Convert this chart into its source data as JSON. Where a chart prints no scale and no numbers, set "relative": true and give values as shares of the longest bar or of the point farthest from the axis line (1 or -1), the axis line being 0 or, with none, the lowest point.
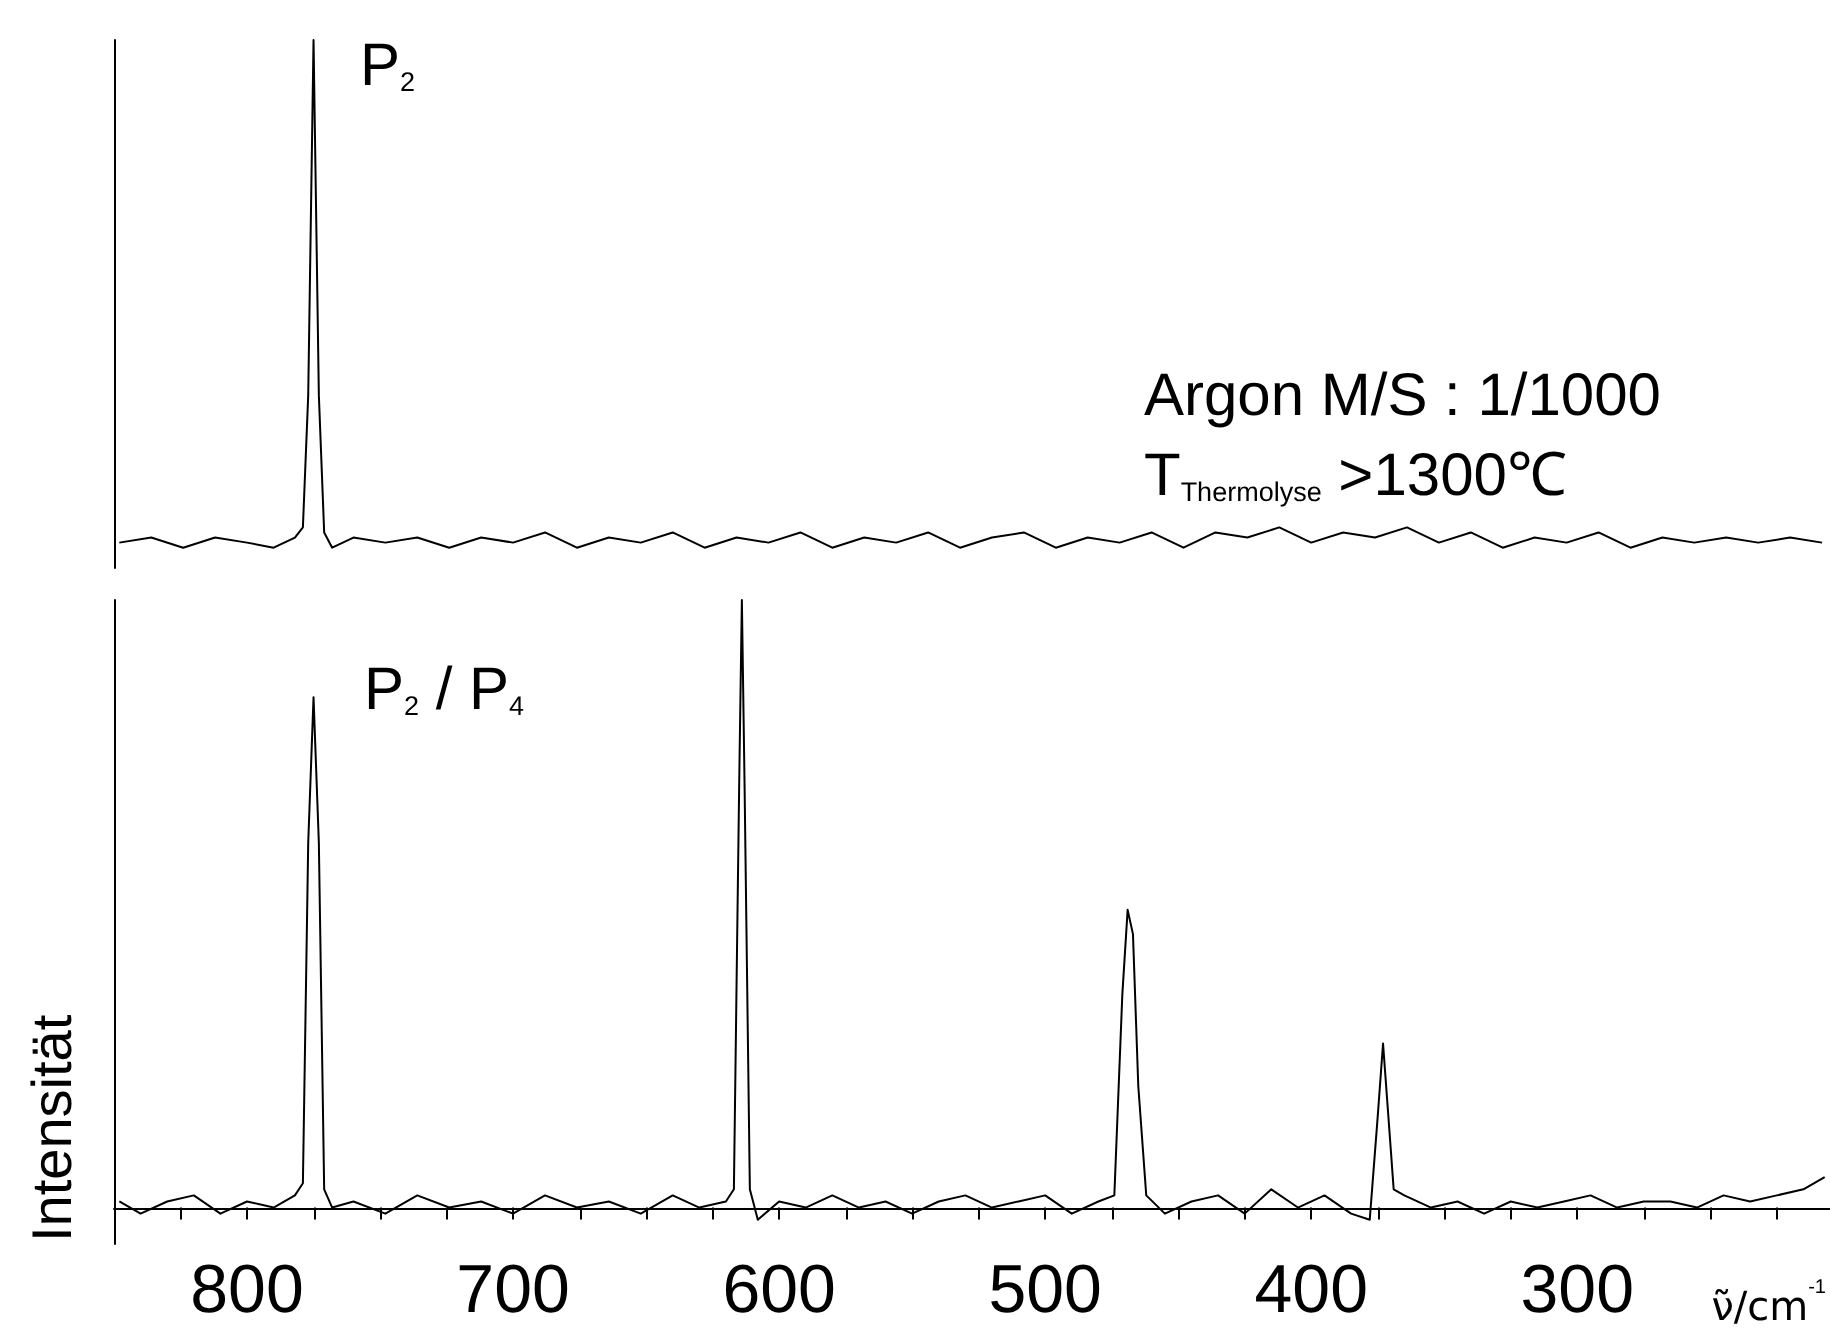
{
  "chart_data": [
    {
      "type": "line",
      "relative": true,
      "tick_labels": false,
      "xlim": [
        850,
        205
      ],
      "xticks": [
        800,
        700,
        600,
        500,
        400,
        300
      ],
      "grid": false,
      "marker": "none",
      "line_style": "solid",
      "annotations": [
        "P$_{2}$",
        "Argon M/S : 1/1000",
        "T$_{Thermolyse}$ >1300℃"
      ],
      "series": [
        {
          "color": "#000000",
          "x": [
            848,
            836,
            824,
            812,
            800,
            790,
            782,
            779,
            777,
            775,
            773,
            771,
            768,
            760,
            748,
            736,
            724,
            712,
            700,
            688,
            676,
            664,
            652,
            640,
            628,
            616,
            604,
            592,
            580,
            568,
            556,
            544,
            532,
            520,
            508,
            496,
            484,
            472,
            460,
            448,
            436,
            424,
            412,
            400,
            388,
            376,
            364,
            352,
            340,
            328,
            316,
            304,
            292,
            280,
            268,
            256,
            244,
            232,
            220,
            208
          ],
          "values": [
            0.01,
            0.02,
            0,
            0.02,
            0.01,
            0,
            0.02,
            0.04,
            0.3,
            1,
            0.3,
            0.03,
            0,
            0.02,
            0.01,
            0.02,
            0,
            0.02,
            0.01,
            0.03,
            0,
            0.02,
            0.01,
            0.03,
            0,
            0.02,
            0.01,
            0.03,
            0,
            0.02,
            0.01,
            0.03,
            0,
            0.02,
            0.03,
            0,
            0.02,
            0.01,
            0.03,
            0,
            0.03,
            0.02,
            0.04,
            0.01,
            0.03,
            0.02,
            0.04,
            0.01,
            0.03,
            0,
            0.02,
            0.01,
            0.03,
            0,
            0.02,
            0.01,
            0.02,
            0.01,
            0.02,
            0.01
          ]
        }
      ]
    },
    {
      "type": "line",
      "relative": true,
      "xlim": [
        850,
        205
      ],
      "xticks": [
        800,
        {
          "value": 775,
          "label": null
        },
        700,
        {
          "value": 650,
          "label": null
        },
        600,
        {
          "value": 550,
          "label": null
        },
        500,
        {
          "value": 450,
          "label": null
        },
        400,
        {
          "value": 350,
          "label": null
        },
        300,
        {
          "value": 250,
          "label": null
        },
        {
          "value": 825,
          "label": null
        },
        {
          "value": 750,
          "label": null
        },
        {
          "value": 725,
          "label": null
        },
        {
          "value": 675,
          "label": null
        },
        {
          "value": 625,
          "label": null
        },
        {
          "value": 575,
          "label": null
        },
        {
          "value": 525,
          "label": null
        },
        {
          "value": 475,
          "label": null
        },
        {
          "value": 425,
          "label": null
        },
        {
          "value": 375,
          "label": null
        },
        {
          "value": 325,
          "label": null
        },
        {
          "value": 275,
          "label": null
        },
        {
          "value": 225,
          "label": null
        }
      ],
      "xlabel": "ν̃/cm$^{-1}$",
      "ylabel": "Intensität",
      "grid": false,
      "marker": "none",
      "line_style": "solid",
      "annotations": [
        "P$_{2}$ / P$_{4}$"
      ],
      "series": [
        {
          "color": "#000000",
          "x": [
            848,
            840,
            830,
            820,
            810,
            800,
            790,
            782,
            779,
            777,
            775,
            773,
            771,
            768,
            760,
            748,
            736,
            724,
            712,
            700,
            688,
            676,
            664,
            652,
            640,
            630,
            620,
            617,
            615,
            614,
            613,
            611,
            608,
            600,
            590,
            580,
            570,
            560,
            550,
            540,
            530,
            520,
            510,
            500,
            490,
            480,
            474,
            471,
            469,
            467,
            465,
            462,
            455,
            445,
            435,
            425,
            415,
            405,
            395,
            385,
            378,
            375,
            373,
            371,
            369,
            365,
            355,
            345,
            335,
            325,
            315,
            305,
            295,
            285,
            275,
            265,
            255,
            245,
            235,
            225,
            215,
            207
          ],
          "values": [
            0.01,
            -0.01,
            0.01,
            0.02,
            -0.01,
            0.01,
            0,
            0.02,
            0.04,
            0.6,
            0.84,
            0.6,
            0.03,
            0,
            0.01,
            -0.01,
            0.02,
            0,
            0.01,
            -0.01,
            0.02,
            0,
            0.01,
            -0.01,
            0.02,
            0,
            0.01,
            0.03,
            0.7,
            1,
            0.7,
            0.03,
            -0.02,
            0.01,
            0,
            0.02,
            0,
            0.01,
            -0.01,
            0.01,
            0.02,
            0,
            0.01,
            0.02,
            -0.01,
            0.01,
            0.02,
            0.35,
            0.49,
            0.45,
            0.2,
            0.02,
            -0.01,
            0.01,
            0.02,
            -0.01,
            0.03,
            0,
            0.02,
            -0.01,
            -0.02,
            0.15,
            0.27,
            0.15,
            0.03,
            0.02,
            0,
            0.01,
            -0.01,
            0.01,
            0,
            0.01,
            0.02,
            0,
            0.01,
            0.01,
            0,
            0.02,
            0.01,
            0.02,
            0.03,
            0.05
          ]
        }
      ]
    }
  ]
}
